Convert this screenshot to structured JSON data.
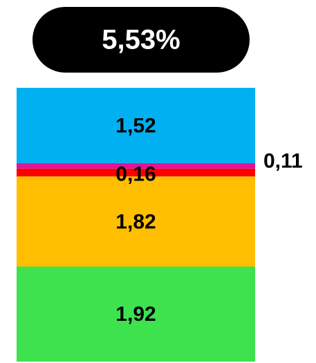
{
  "chart_data": {
    "type": "bar",
    "stacked": true,
    "title": "5,53%",
    "series": [
      {
        "color": "#3ee24f",
        "values": [
          1.92
        ],
        "value_labels": [
          "1,92"
        ]
      },
      {
        "color": "#ffbe00",
        "values": [
          1.82
        ],
        "value_labels": [
          "1,82"
        ]
      },
      {
        "color": "#ff0000",
        "values": [
          0.16
        ],
        "value_labels": [
          "0,16"
        ]
      },
      {
        "color": "#e0139c",
        "values": [
          0.11
        ],
        "value_labels": [
          "0,11"
        ]
      },
      {
        "color": "#00b0f0",
        "values": [
          1.52
        ],
        "value_labels": [
          "1,52"
        ]
      }
    ]
  }
}
